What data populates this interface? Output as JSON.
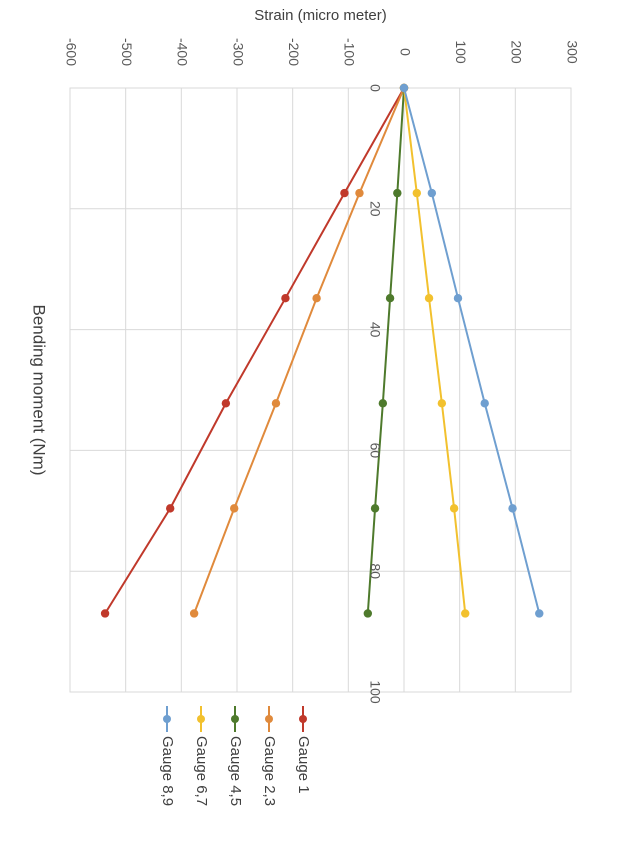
{
  "chart_data": {
    "type": "line",
    "xlabel": "Bending moment (Nm)",
    "ylabel": "Strain (micro meter)",
    "xlim": [
      0,
      100
    ],
    "ylim": [
      -600,
      300
    ],
    "xticks": [
      "0",
      "20",
      "40",
      "60",
      "80",
      "100"
    ],
    "yticks": [
      "-600",
      "-500",
      "-400",
      "-300",
      "-200",
      "-100",
      "0",
      "100",
      "200",
      "300"
    ],
    "grid": true,
    "legend_position": "bottom",
    "x": [
      0,
      17.4,
      34.8,
      52.2,
      69.6,
      87.0
    ],
    "series": [
      {
        "name": "Gauge 1",
        "color": "#c0392b",
        "values": [
          0,
          -107,
          -213,
          -320,
          -420,
          -537
        ]
      },
      {
        "name": "Gauge 2,3",
        "color": "#e08a3c",
        "values": [
          0,
          -80,
          -157,
          -230,
          -305,
          -377
        ]
      },
      {
        "name": "Gauge 4,5",
        "color": "#4e7a2c",
        "values": [
          0,
          -12,
          -25,
          -38,
          -52,
          -65
        ]
      },
      {
        "name": "Gauge 6,7",
        "color": "#f2c12e",
        "values": [
          0,
          23,
          45,
          68,
          90,
          110
        ]
      },
      {
        "name": "Gauge 8,9",
        "color": "#6f9fd0",
        "values": [
          0,
          50,
          97,
          145,
          195,
          243
        ]
      }
    ]
  }
}
